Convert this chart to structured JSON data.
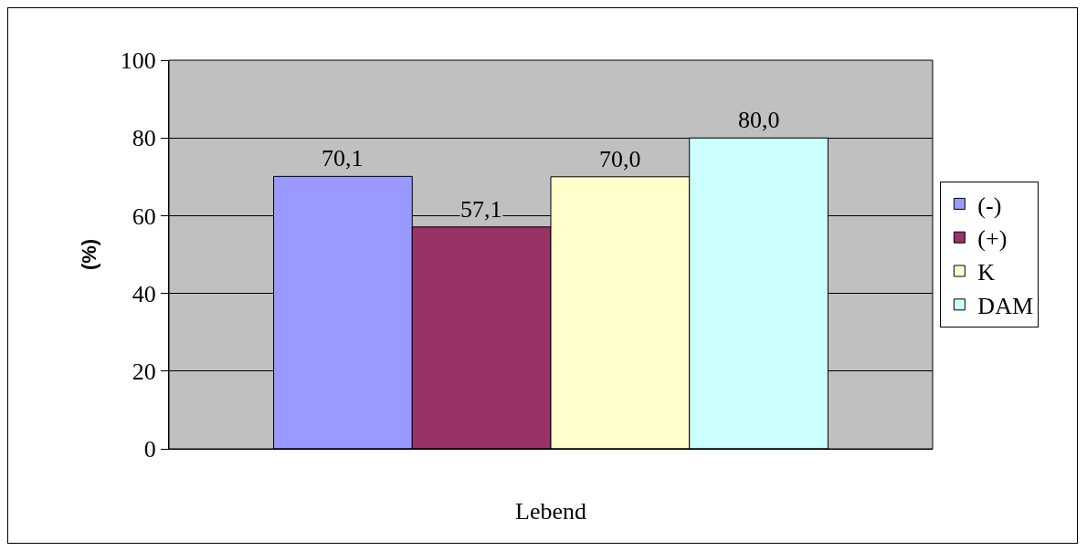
{
  "chart_data": {
    "type": "bar",
    "ylabel": "(%)",
    "categories": [
      "Lebend"
    ],
    "series": [
      {
        "name": "(-)",
        "color": "#9999ff",
        "values": [
          70.1
        ],
        "value_labels": [
          "70,1"
        ]
      },
      {
        "name": "(+)",
        "color": "#993366",
        "values": [
          57.1
        ],
        "value_labels": [
          "57,1"
        ]
      },
      {
        "name": "K",
        "color": "#ffffcc",
        "values": [
          70.0
        ],
        "value_labels": [
          "70,0"
        ]
      },
      {
        "name": "DAM",
        "color": "#ccffff",
        "values": [
          80.0
        ],
        "value_labels": [
          "80,0"
        ]
      }
    ],
    "ylim": [
      0,
      100
    ],
    "yticks": [
      0,
      20,
      40,
      60,
      80,
      100
    ],
    "grid": "y",
    "legend": "right"
  }
}
